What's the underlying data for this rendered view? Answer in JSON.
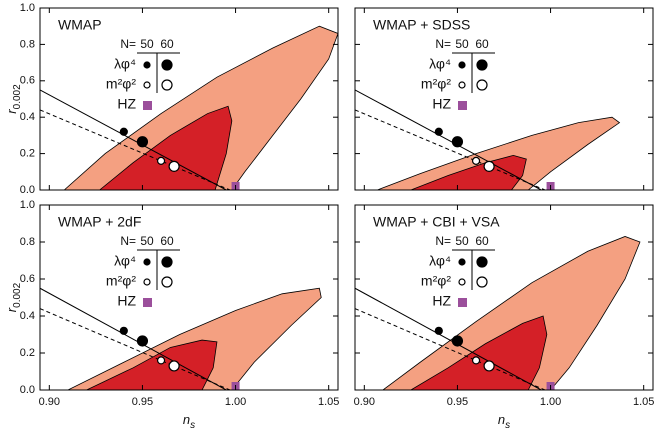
{
  "chart_data": [
    {
      "type": "contour",
      "title": "WMAP",
      "xlim": [
        0.895,
        1.055
      ],
      "ylim": [
        0,
        1
      ],
      "xticks": [
        0.9,
        0.95,
        1.0,
        1.05
      ],
      "xticklabels": false,
      "yticks": [
        {
          "value": 0,
          "label": "0.0"
        },
        0.2,
        0.4,
        0.6,
        0.8,
        {
          "value": 1,
          "label": "1.0"
        }
      ],
      "yticklabels": true,
      "ylabel": {
        "text": "r",
        "sub": "0.002"
      },
      "regions": [
        {
          "color": "#f4a081",
          "x": [
            0.908,
            0.93,
            0.96,
            0.99,
            1.02,
            1.045,
            1.055,
            1.05,
            1.035,
            1.02,
            1.005,
            0.998
          ],
          "y": [
            0,
            0.2,
            0.42,
            0.62,
            0.78,
            0.9,
            0.86,
            0.72,
            0.5,
            0.3,
            0.1,
            0
          ]
        },
        {
          "color": "#d42027",
          "x": [
            0.927,
            0.945,
            0.965,
            0.985,
            0.996,
            0.998,
            0.995,
            0.989
          ],
          "y": [
            0,
            0.15,
            0.3,
            0.42,
            0.46,
            0.38,
            0.2,
            0
          ]
        }
      ],
      "legend_header": "N=",
      "legend_n": [
        50,
        60
      ],
      "models": [
        {
          "name": "λφ⁴",
          "line_style": "solid",
          "line_x": [
            0.895,
            0.995
          ],
          "line_y": [
            0.55,
            0
          ],
          "x": [
            0.94,
            0.95
          ],
          "y": [
            0.32,
            0.265
          ],
          "fill": "#000000"
        },
        {
          "name": "m²φ²",
          "line_style": "dashed",
          "line_x": [
            0.895,
            0.997
          ],
          "line_y": [
            0.44,
            0
          ],
          "x": [
            0.96,
            0.967
          ],
          "y": [
            0.16,
            0.13
          ],
          "fill": "#ffffff"
        },
        {
          "name": "HZ",
          "x": [
            1.0
          ],
          "y": [
            0
          ],
          "fill": "#9b4f9b"
        }
      ]
    },
    {
      "type": "contour",
      "title": "WMAP + SDSS",
      "xlim": [
        0.895,
        1.055
      ],
      "ylim": [
        0,
        1
      ],
      "xticks": [
        0.9,
        0.95,
        1.0,
        1.05
      ],
      "xticklabels": false,
      "yticks": [
        0,
        0.2,
        0.4,
        0.6,
        0.8,
        1
      ],
      "yticklabels": false,
      "regions": [
        {
          "color": "#f4a081",
          "x": [
            0.907,
            0.93,
            0.96,
            0.99,
            1.015,
            1.033,
            1.037,
            1.02,
            1.0,
            0.988
          ],
          "y": [
            0,
            0.09,
            0.2,
            0.3,
            0.37,
            0.4,
            0.37,
            0.25,
            0.1,
            0
          ]
        },
        {
          "color": "#d42027",
          "x": [
            0.925,
            0.945,
            0.965,
            0.98,
            0.987,
            0.985,
            0.979
          ],
          "y": [
            0,
            0.08,
            0.15,
            0.19,
            0.17,
            0.08,
            0
          ]
        }
      ],
      "legend_header": "N=",
      "legend_n": [
        50,
        60
      ],
      "models": [
        {
          "name": "λφ⁴",
          "line_style": "solid",
          "line_x": [
            0.895,
            0.995
          ],
          "line_y": [
            0.55,
            0
          ],
          "x": [
            0.94,
            0.95
          ],
          "y": [
            0.32,
            0.265
          ],
          "fill": "#000000"
        },
        {
          "name": "m²φ²",
          "line_style": "dashed",
          "line_x": [
            0.895,
            0.997
          ],
          "line_y": [
            0.44,
            0
          ],
          "x": [
            0.96,
            0.967
          ],
          "y": [
            0.16,
            0.13
          ],
          "fill": "#ffffff"
        },
        {
          "name": "HZ",
          "x": [
            1.0
          ],
          "y": [
            0
          ],
          "fill": "#9b4f9b"
        }
      ]
    },
    {
      "type": "contour",
      "title": "WMAP + 2dF",
      "xlim": [
        0.895,
        1.055
      ],
      "ylim": [
        0,
        1
      ],
      "xticks": [
        {
          "value": 0.9,
          "label": "0.90"
        },
        0.95,
        {
          "value": 1.0,
          "label": "1.00"
        },
        1.05
      ],
      "xticklabels": true,
      "yticks": [
        {
          "value": 0,
          "label": "0.0"
        },
        0.2,
        0.4,
        0.6,
        0.8,
        {
          "value": 1,
          "label": "1.0"
        }
      ],
      "yticklabels": true,
      "ylabel": {
        "text": "r",
        "sub": "0.002"
      },
      "xlabel": {
        "text": "n",
        "sub": "s"
      },
      "regions": [
        {
          "color": "#f4a081",
          "x": [
            0.91,
            0.94,
            0.97,
            1.0,
            1.025,
            1.045,
            1.046,
            1.03,
            1.01,
            0.998
          ],
          "y": [
            0,
            0.15,
            0.3,
            0.43,
            0.52,
            0.55,
            0.5,
            0.35,
            0.15,
            0
          ]
        },
        {
          "color": "#d42027",
          "x": [
            0.92,
            0.945,
            0.965,
            0.982,
            0.99,
            0.988,
            0.982
          ],
          "y": [
            0,
            0.12,
            0.23,
            0.27,
            0.26,
            0.12,
            0
          ]
        }
      ],
      "legend_header": "N=",
      "legend_n": [
        50,
        60
      ],
      "models": [
        {
          "name": "λφ⁴",
          "line_style": "solid",
          "line_x": [
            0.895,
            0.995
          ],
          "line_y": [
            0.55,
            0
          ],
          "x": [
            0.94,
            0.95
          ],
          "y": [
            0.32,
            0.265
          ],
          "fill": "#000000"
        },
        {
          "name": "m²φ²",
          "line_style": "dashed",
          "line_x": [
            0.895,
            0.997
          ],
          "line_y": [
            0.44,
            0
          ],
          "x": [
            0.96,
            0.967
          ],
          "y": [
            0.16,
            0.13
          ],
          "fill": "#ffffff"
        },
        {
          "name": "HZ",
          "x": [
            1.0
          ],
          "y": [
            0
          ],
          "fill": "#9b4f9b"
        }
      ]
    },
    {
      "type": "contour",
      "title": "WMAP + CBI + VSA",
      "xlim": [
        0.895,
        1.055
      ],
      "ylim": [
        0,
        1
      ],
      "xticks": [
        {
          "value": 0.9,
          "label": "0.90"
        },
        0.95,
        {
          "value": 1.0,
          "label": "1.00"
        },
        1.05
      ],
      "xticklabels": true,
      "yticks": [
        0,
        0.2,
        0.4,
        0.6,
        0.8,
        1
      ],
      "yticklabels": false,
      "xlabel": {
        "text": "n",
        "sub": "s"
      },
      "regions": [
        {
          "color": "#f4a081",
          "x": [
            0.91,
            0.93,
            0.96,
            0.99,
            1.02,
            1.04,
            1.048,
            1.04,
            1.025,
            1.01,
            1.0
          ],
          "y": [
            0,
            0.15,
            0.37,
            0.58,
            0.75,
            0.83,
            0.8,
            0.6,
            0.35,
            0.12,
            0
          ]
        },
        {
          "color": "#d42027",
          "x": [
            0.925,
            0.945,
            0.965,
            0.985,
            0.996,
            0.998,
            0.994,
            0.988
          ],
          "y": [
            0,
            0.12,
            0.25,
            0.36,
            0.4,
            0.3,
            0.12,
            0
          ]
        }
      ],
      "legend_header": "N=",
      "legend_n": [
        50,
        60
      ],
      "models": [
        {
          "name": "λφ⁴",
          "line_style": "solid",
          "line_x": [
            0.895,
            0.995
          ],
          "line_y": [
            0.55,
            0
          ],
          "x": [
            0.94,
            0.95
          ],
          "y": [
            0.32,
            0.265
          ],
          "fill": "#000000"
        },
        {
          "name": "m²φ²",
          "line_style": "dashed",
          "line_x": [
            0.895,
            0.997
          ],
          "line_y": [
            0.44,
            0
          ],
          "x": [
            0.96,
            0.967
          ],
          "y": [
            0.16,
            0.13
          ],
          "fill": "#ffffff"
        },
        {
          "name": "HZ",
          "x": [
            1.0
          ],
          "y": [
            0
          ],
          "fill": "#9b4f9b"
        }
      ]
    }
  ]
}
